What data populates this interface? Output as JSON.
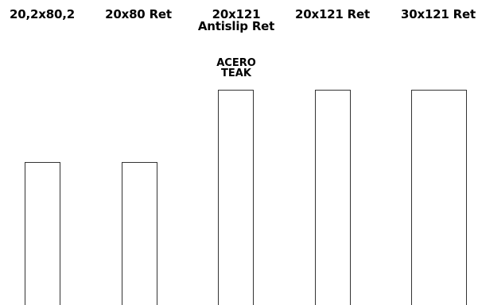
{
  "products": [
    {
      "label_lines": [
        "20,2x80,2"
      ],
      "height_level": "low"
    },
    {
      "label_lines": [
        "20x80 Ret"
      ],
      "height_level": "low"
    },
    {
      "label_lines": [
        "20x121",
        "Antislip Ret"
      ],
      "height_level": "high",
      "note_lines": [
        "ACERO",
        "TEAK"
      ]
    },
    {
      "label_lines": [
        "20x121 Ret"
      ],
      "height_level": "high"
    },
    {
      "label_lines": [
        "30x121 Ret"
      ],
      "height_level": "high"
    }
  ],
  "colors": {
    "background": "#ffffff",
    "outline": "#333333",
    "text": "#000000"
  }
}
